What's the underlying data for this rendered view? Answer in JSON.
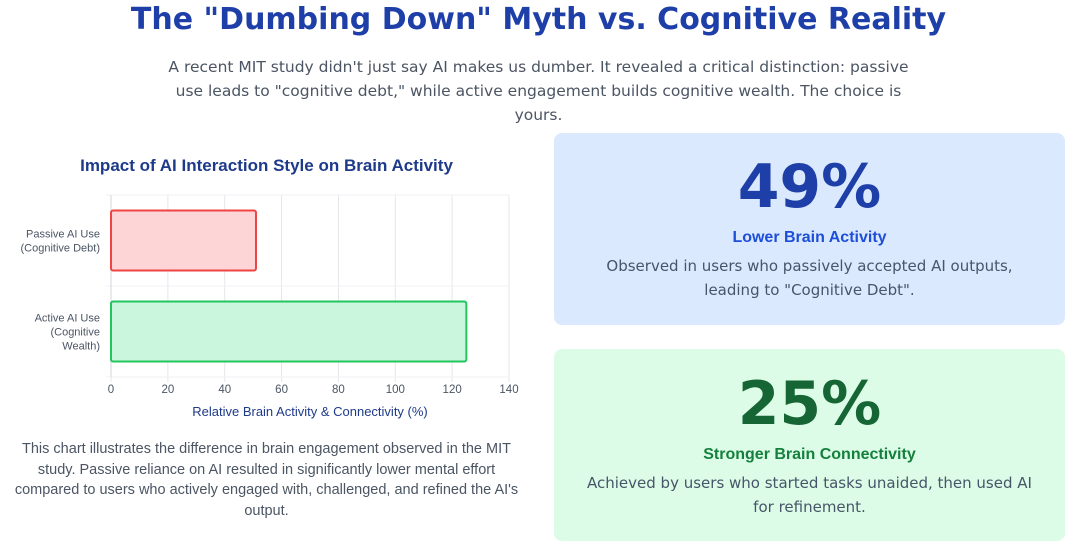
{
  "header": {
    "title": "The \"Dumbing Down\" Myth vs. Cognitive Reality",
    "subtitle": "A recent MIT study didn't just say AI makes us dumber. It revealed a critical distinction: passive use leads to \"cognitive debt,\" while active engagement builds cognitive wealth. The choice is yours."
  },
  "chart_data": {
    "type": "bar",
    "orientation": "horizontal",
    "title": "Impact of AI Interaction Style on Brain Activity",
    "categories": [
      [
        "Passive AI Use",
        "(Cognitive Debt)"
      ],
      [
        "Active AI Use",
        "(Cognitive",
        "Wealth)"
      ]
    ],
    "values": [
      51,
      125
    ],
    "xlabel": "Relative Brain Activity & Connectivity (%)",
    "ylabel": "",
    "xlim": [
      0,
      140
    ],
    "xticks": [
      0,
      20,
      40,
      60,
      80,
      100,
      120,
      140
    ],
    "grid": true,
    "colors": {
      "fill": [
        "#fdd5d6",
        "#c9f6dc"
      ],
      "stroke": [
        "#ef4444",
        "#22c55e"
      ]
    }
  },
  "caption": "This chart illustrates the difference in brain engagement observed in the MIT study. Passive reliance on AI resulted in significantly lower mental effort compared to users who actively engaged with, challenged, and refined the AI's output.",
  "stats": [
    {
      "value": "49%",
      "label": "Lower Brain Activity",
      "description": "Observed in users who passively accepted AI outputs, leading to \"Cognitive Debt\"."
    },
    {
      "value": "25%",
      "label": "Stronger Brain Connectivity",
      "description": "Achieved by users who started tasks unaided, then used AI for refinement."
    }
  ]
}
